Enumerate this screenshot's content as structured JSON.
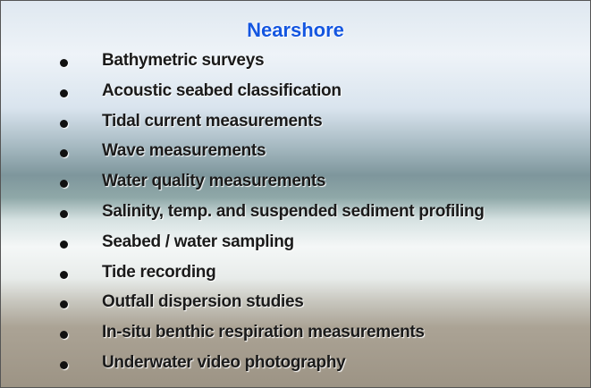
{
  "title": "Nearshore",
  "items": [
    "Bathymetric surveys",
    "Acoustic seabed classification",
    "Tidal current measurements",
    "Wave measurements",
    "Water quality measurements",
    "Salinity, temp. and suspended sediment profiling",
    "Seabed / water sampling",
    "Tide recording",
    "Outfall dispersion studies",
    "In-situ benthic respiration measurements",
    "Underwater video photography"
  ]
}
